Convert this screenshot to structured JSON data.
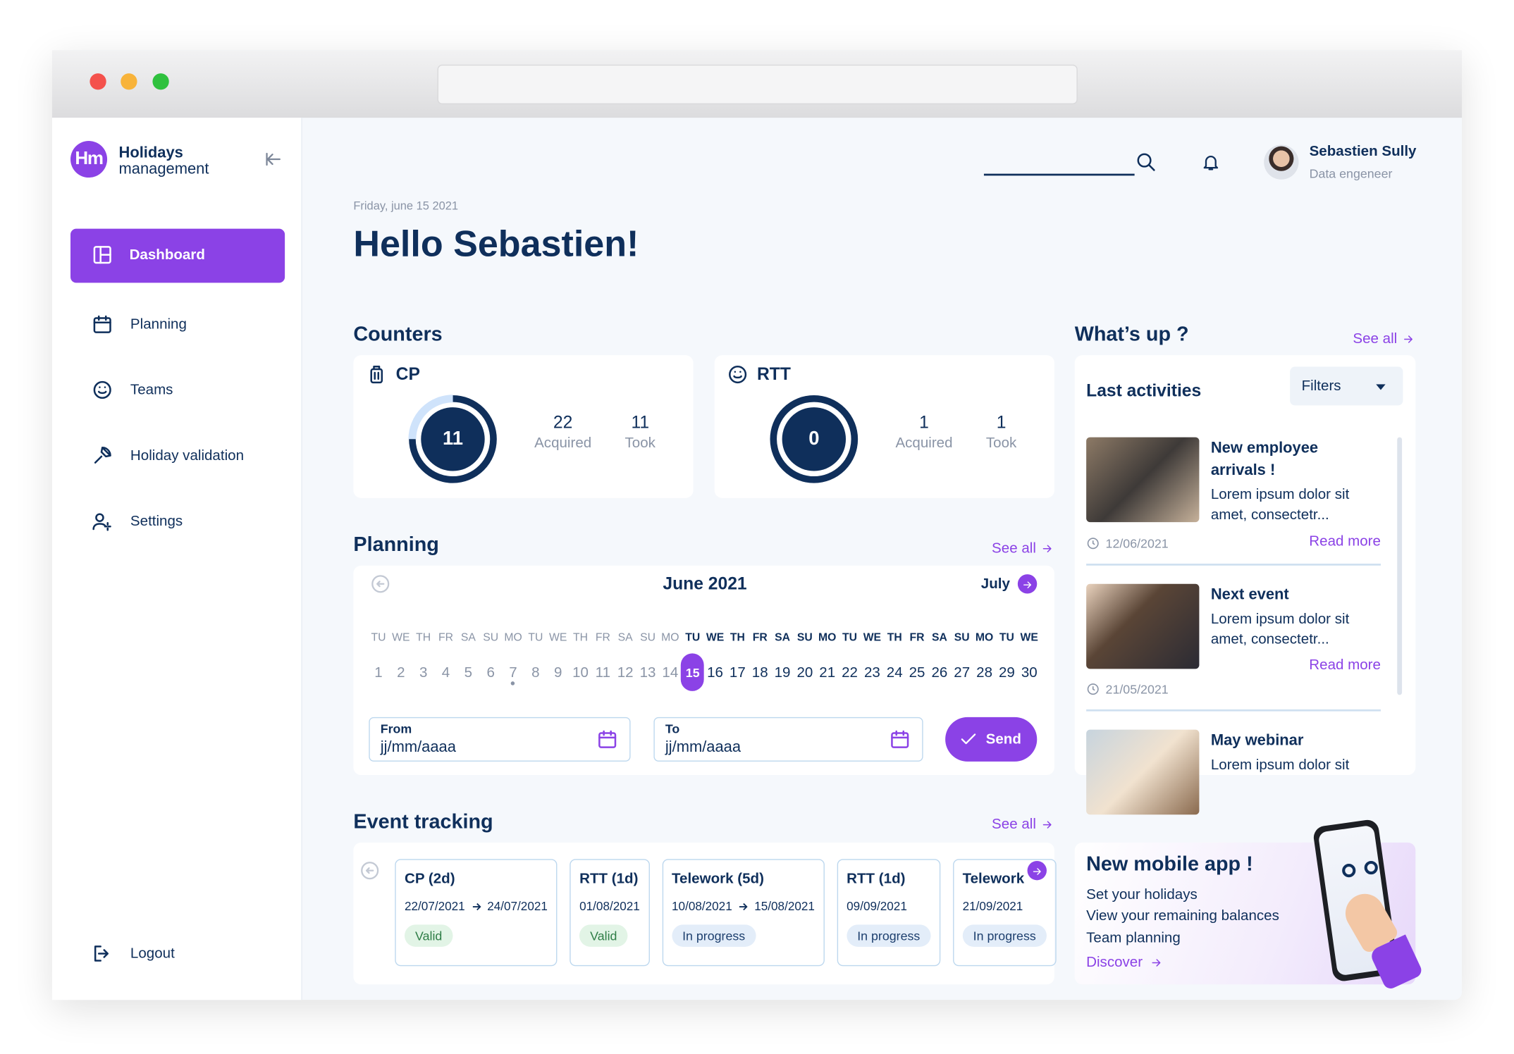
{
  "sidebar": {
    "logo": "Hm",
    "brand_line1": "Holidays",
    "brand_line2": "management",
    "active": 0,
    "nav": [
      "Dashboard",
      "Planning",
      "Teams",
      "Holiday validation",
      "Settings"
    ],
    "logout": "Logout"
  },
  "header": {
    "user_name": "Sebastien Sully",
    "user_role": "Data engeneer",
    "date": "Friday, june 15 2021",
    "greeting": "Hello Sebastien!"
  },
  "counters": {
    "title": "Counters",
    "cards": [
      {
        "name": "CP",
        "remaining": 11,
        "acquired": 22,
        "acquired_label": "Acquired",
        "took": 11,
        "took_label": "Took"
      },
      {
        "name": "RTT",
        "remaining": 0,
        "acquired": 1,
        "acquired_label": "Acquired",
        "took": 1,
        "took_label": "Took"
      }
    ]
  },
  "planning": {
    "title": "Planning",
    "see_all": "See all",
    "month": "June 2021",
    "next_month": "July",
    "selected_day": 15,
    "marked_days": [
      7
    ],
    "weekdays": [
      "TU",
      "WE",
      "TH",
      "FR",
      "SA",
      "SU",
      "MO",
      "TU",
      "WE",
      "TH",
      "FR",
      "SA",
      "SU",
      "MO",
      "TU",
      "WE",
      "TH",
      "FR",
      "SA",
      "SU",
      "MO",
      "TU",
      "WE",
      "TH",
      "FR",
      "SA",
      "SU",
      "MO",
      "TU",
      "WE"
    ],
    "days": [
      1,
      2,
      3,
      4,
      5,
      6,
      7,
      8,
      9,
      10,
      11,
      12,
      13,
      14,
      15,
      16,
      17,
      18,
      19,
      20,
      21,
      22,
      23,
      24,
      25,
      26,
      27,
      28,
      29,
      30
    ],
    "from_label": "From",
    "from_placeholder": "jj/mm/aaaa",
    "to_label": "To",
    "to_placeholder": "jj/mm/aaaa",
    "send": "Send"
  },
  "events": {
    "title": "Event tracking",
    "see_all": "See all",
    "items": [
      {
        "title": "CP (2d)",
        "start": "22/07/2021",
        "end": "24/07/2021",
        "status": "Valid",
        "status_color": "#e2f4e6",
        "status_text_color": "#2e7d46"
      },
      {
        "title": "RTT (1d)",
        "start": "01/08/2021",
        "status": "Valid",
        "status_color": "#e2f4e6",
        "status_text_color": "#2e7d46"
      },
      {
        "title": "Telework (5d)",
        "start": "10/08/2021",
        "end": "15/08/2021",
        "status": "In progress",
        "status_color": "#e3edf9",
        "status_text_color": "#1d3f6e"
      },
      {
        "title": "RTT (1d)",
        "start": "09/09/2021",
        "status": "In progress",
        "status_color": "#e3edf9",
        "status_text_color": "#1d3f6e"
      },
      {
        "title": "Telework",
        "start": "21/09/2021",
        "status": "In progress",
        "status_color": "#e3edf9",
        "status_text_color": "#1d3f6e"
      }
    ]
  },
  "whats_up": {
    "title": "What’s up ?",
    "see_all": "See all",
    "panel_title": "Last activities",
    "filters": "Filters",
    "items": [
      {
        "title": "New employee arrivals !",
        "desc": "Lorem ipsum dolor sit amet, consectetr...",
        "date": "12/06/2021",
        "read_more": "Read more"
      },
      {
        "title": "Next event",
        "desc": "Lorem ipsum dolor sit amet, consectetr...",
        "date": "21/05/2021",
        "read_more": "Read more"
      },
      {
        "title": "May webinar",
        "desc": "Lorem ipsum dolor sit"
      }
    ]
  },
  "promo": {
    "title": "New mobile app !",
    "lines": [
      "Set your holidays",
      "View your remaining balances",
      "Team planning"
    ],
    "cta": "Discover"
  }
}
